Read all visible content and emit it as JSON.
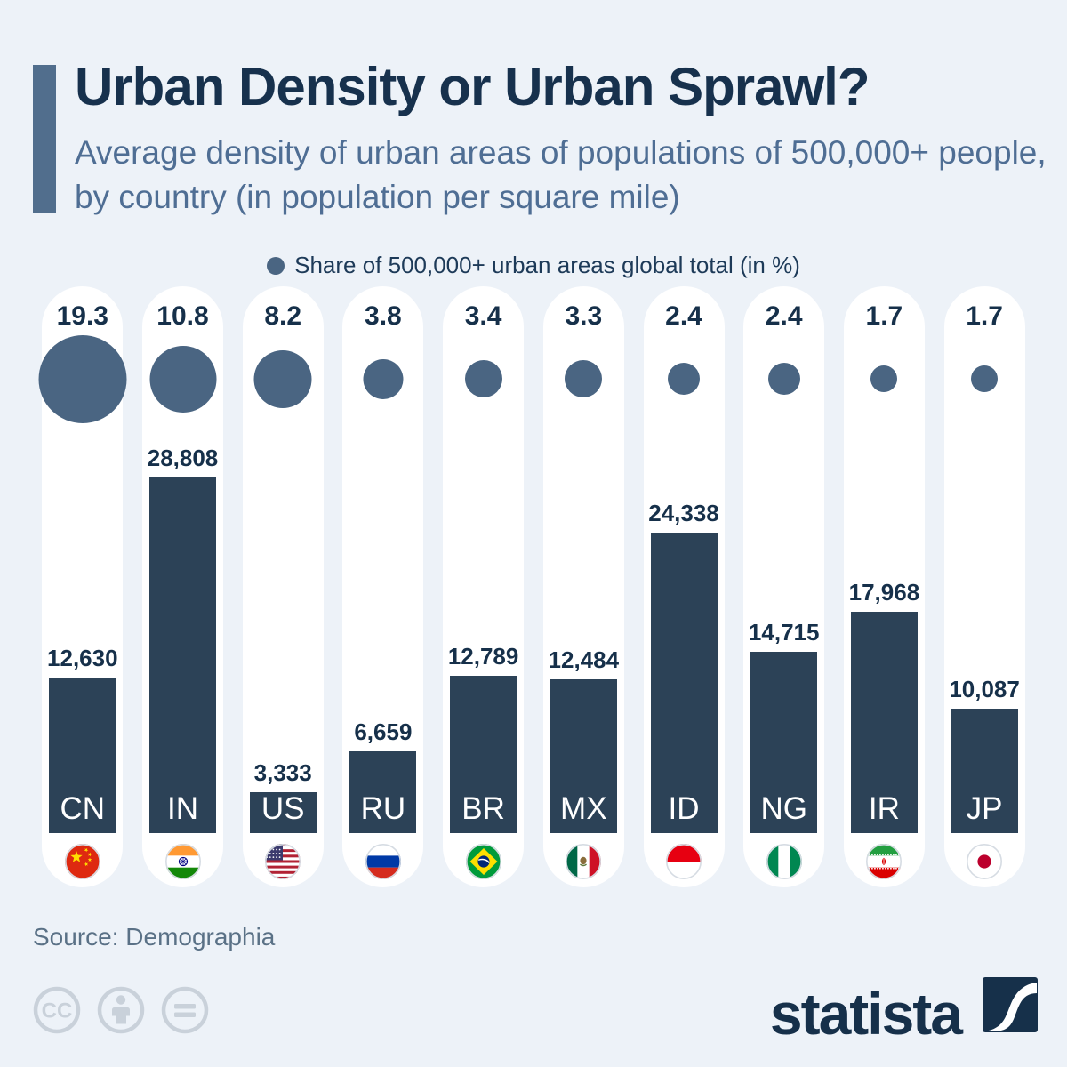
{
  "header": {
    "title": "Urban Density or Urban Sprawl?",
    "subtitle": "Average density of urban areas of populations of 500,000+ people, by country (in population per square mile)"
  },
  "legend": {
    "label": "Share of 500,000+ urban areas global total (in %)"
  },
  "chart_data": {
    "type": "bar",
    "categories": [
      "CN",
      "IN",
      "US",
      "RU",
      "BR",
      "MX",
      "ID",
      "NG",
      "IR",
      "JP"
    ],
    "series": [
      {
        "name": "Average density of urban areas (population per square mile)",
        "values": [
          12630,
          28808,
          3333,
          6659,
          12789,
          12484,
          24338,
          14715,
          17968,
          10087
        ],
        "labels": [
          "12,630",
          "28,808",
          "3,333",
          "6,659",
          "12,789",
          "12,484",
          "24,338",
          "14,715",
          "17,968",
          "10,087"
        ]
      },
      {
        "name": "Share of 500,000+ urban areas global total (in %)",
        "values": [
          19.3,
          10.8,
          8.2,
          3.8,
          3.4,
          3.3,
          2.4,
          2.4,
          1.7,
          1.7
        ],
        "labels": [
          "19.3",
          "10.8",
          "8.2",
          "3.8",
          "3.4",
          "3.3",
          "2.4",
          "2.4",
          "1.7",
          "1.7"
        ]
      }
    ],
    "flags": [
      "flag-cn",
      "flag-in",
      "flag-us",
      "flag-ru",
      "flag-br",
      "flag-mx",
      "flag-id",
      "flag-ng",
      "flag-ir",
      "flag-jp"
    ],
    "ylim": [
      0,
      28808
    ],
    "grid": false,
    "legend_position": "top-center",
    "title": "Urban Density or Urban Sprawl?"
  },
  "footer": {
    "source": "Source: Demographia",
    "brand": "statista"
  },
  "colors": {
    "background": "#edf2f8",
    "pill": "#ffffff",
    "bar": "#2c4257",
    "circle": "#4a6582",
    "accent": "#516e8d",
    "title_text": "#17314d",
    "subtitle_text": "#4f6e94",
    "value_text": "#16304a",
    "source_text": "#5a7186",
    "cc_gray": "#c9d1da",
    "brand_navy": "#16304a"
  }
}
